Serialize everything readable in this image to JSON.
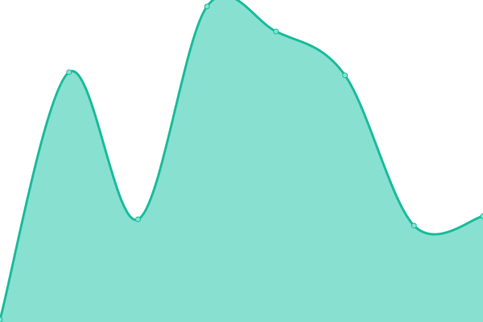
{
  "chart_data": {
    "type": "area",
    "x": [
      0,
      1,
      2,
      3,
      4,
      5,
      6,
      7
    ],
    "values": [
      0,
      79,
      32,
      100,
      92,
      78,
      30,
      33
    ],
    "ylim": [
      0,
      100
    ],
    "grid": false,
    "curve": "smooth",
    "colors": {
      "line": "#1abc9c",
      "fill": "#88e0d0",
      "point_fill": "#88e0d0"
    }
  }
}
